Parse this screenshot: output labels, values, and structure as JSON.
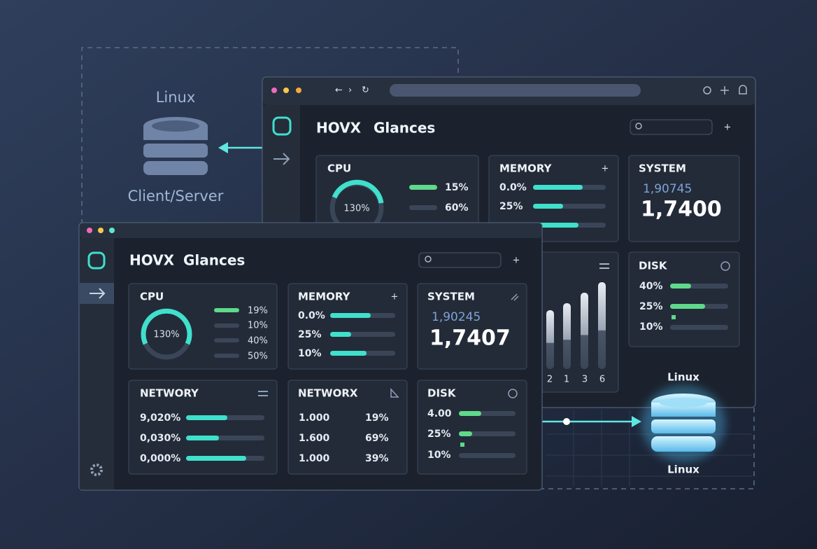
{
  "left_server": {
    "title": "Linux",
    "label": "Client/Server"
  },
  "right_server": {
    "title": "Linux",
    "label": "Linux"
  },
  "back_window": {
    "brand": "HOVX",
    "app": "Glances",
    "cpu": {
      "title": "CPU",
      "gauge": "130%",
      "rows": [
        "15%",
        "60%"
      ]
    },
    "memory": {
      "title": "MEMORY",
      "rows": [
        "0.0%",
        "25%"
      ]
    },
    "system": {
      "title": "SYSTEM",
      "sub": "1,90745",
      "main": "1,7400"
    },
    "disk": {
      "title": "DISK",
      "rows": [
        "40%",
        "25%",
        "10%"
      ]
    },
    "chart_labels": [
      "2",
      "1",
      "3",
      "6"
    ]
  },
  "front_window": {
    "brand": "HOVX",
    "app": "Glances",
    "cpu": {
      "title": "CPU",
      "gauge": "130%",
      "rows": [
        "19%",
        "10%",
        "40%",
        "50%"
      ]
    },
    "memory": {
      "title": "MEMORY",
      "rows": [
        "0.0%",
        "25%",
        "10%"
      ]
    },
    "system": {
      "title": "SYSTEM",
      "sub": "1,90245",
      "main": "1,7407"
    },
    "networy": {
      "title": "NETWORY",
      "rows": [
        "9,020%",
        "0,030%",
        "0,000%"
      ]
    },
    "networx": {
      "title": "NETWORX",
      "col1": [
        "1.000",
        "1.600",
        "1.000"
      ],
      "col2": [
        "19%",
        "69%",
        "39%"
      ]
    },
    "disk": {
      "title": "DISK",
      "rows": [
        "4.00",
        "25%",
        "10%"
      ]
    }
  }
}
